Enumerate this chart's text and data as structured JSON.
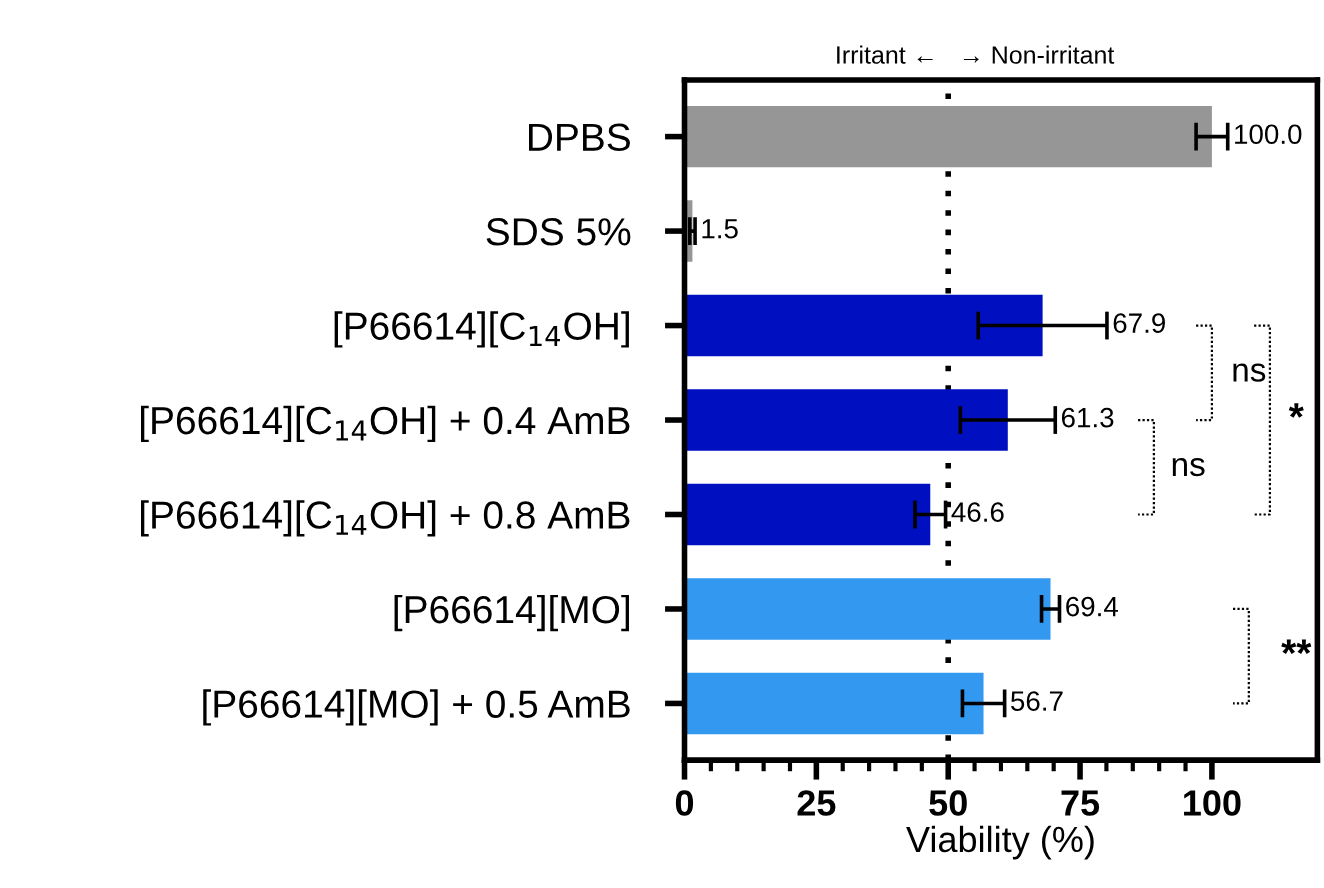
{
  "chart_data": {
    "type": "bar",
    "orientation": "horizontal",
    "xlabel": "Viability (%)",
    "categories": [
      "DPBS",
      "SDS 5%",
      "[P66614][C$_{14}$OH]",
      "[P66614][C$_{14}$OH] + 0.4 AmB",
      "[P66614][C$_{14}$OH] + 0.8 AmB",
      "[P66614][MO]",
      "[P66614][MO] + 0.5 AmB"
    ],
    "values": [
      100.0,
      1.5,
      67.9,
      61.3,
      46.6,
      69.4,
      56.7
    ],
    "value_labels": [
      "100.0",
      "1.5",
      "67.9",
      "61.3",
      "46.6",
      "69.4",
      "56.7"
    ],
    "errors": [
      3,
      0.5,
      12.2,
      9,
      2.9,
      1.7,
      4
    ],
    "colors": [
      "#969696",
      "#969696",
      "#0010c0",
      "#0010c0",
      "#0010c0",
      "#3399f0",
      "#3399f0"
    ],
    "xlim": [
      0,
      120
    ],
    "xticks": [
      0,
      25,
      50,
      75,
      100
    ],
    "ref_lines": [
      {
        "axis": "x",
        "value": 50,
        "line_style": "dotted",
        "color": "#000000"
      }
    ],
    "annotations": [
      "Irritant ←",
      "→ Non-irritant",
      "ns",
      "ns",
      "*",
      "**"
    ],
    "grid": false,
    "legend": false
  }
}
